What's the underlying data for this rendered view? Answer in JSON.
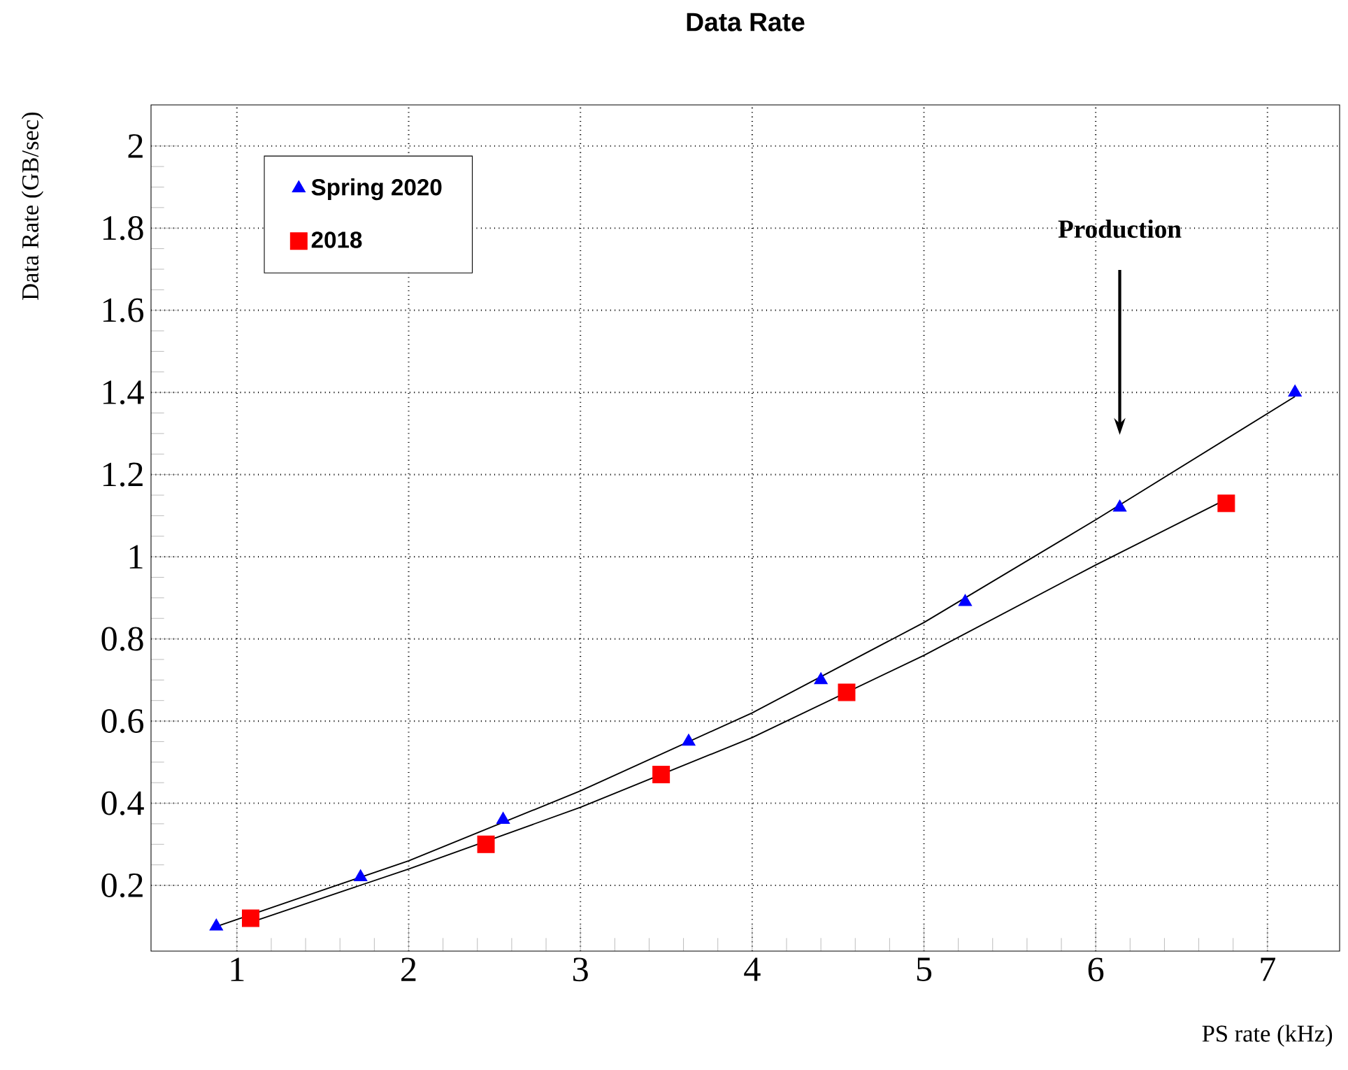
{
  "chart_data": {
    "type": "scatter",
    "title": "Data Rate",
    "xlabel": "PS rate  (kHz)",
    "ylabel": "Data Rate   (GB/sec)",
    "xlim": [
      0.5,
      7.42
    ],
    "ylim": [
      0.04,
      2.1
    ],
    "xticks": [
      1,
      2,
      3,
      4,
      5,
      6,
      7
    ],
    "yticks": [
      0.2,
      0.4,
      0.6,
      0.8,
      1,
      1.2,
      1.4,
      1.6,
      1.8,
      2
    ],
    "grid": true,
    "legend": "top left",
    "series": [
      {
        "name": "Spring 2020",
        "marker": "triangle",
        "color": "#0000ff",
        "x": [
          0.88,
          1.72,
          2.55,
          3.63,
          4.4,
          5.24,
          6.14,
          7.16
        ],
        "values": [
          0.1,
          0.22,
          0.36,
          0.55,
          0.7,
          0.89,
          1.12,
          1.4
        ]
      },
      {
        "name": "2018",
        "marker": "square",
        "color": "#ff0000",
        "x": [
          1.08,
          2.45,
          3.47,
          4.55,
          6.76
        ],
        "values": [
          0.12,
          0.3,
          0.47,
          0.67,
          1.13
        ]
      },
      {
        "type": "line",
        "marker": "none",
        "color": "#000000",
        "x": [
          0.88,
          2,
          3,
          4,
          5,
          6,
          7.16
        ],
        "values": [
          0.1,
          0.26,
          0.43,
          0.62,
          0.84,
          1.09,
          1.39
        ]
      },
      {
        "type": "line",
        "marker": "none",
        "color": "#000000",
        "x": [
          1.08,
          2,
          3,
          4,
          5,
          6,
          6.76
        ],
        "values": [
          0.11,
          0.24,
          0.39,
          0.56,
          0.76,
          0.98,
          1.14
        ]
      }
    ],
    "annotations": [
      "Production"
    ]
  }
}
